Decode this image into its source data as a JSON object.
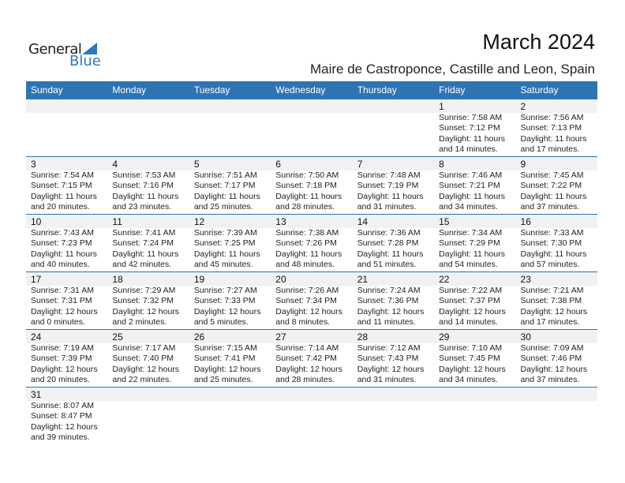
{
  "logo": {
    "general": "General",
    "blue": "Blue"
  },
  "title": "March 2024",
  "subtitle": "Maire de Castroponce, Castille and Leon, Spain",
  "weekdays": [
    "Sunday",
    "Monday",
    "Tuesday",
    "Wednesday",
    "Thursday",
    "Friday",
    "Saturday"
  ],
  "colors": {
    "header": "#2e74b5",
    "date_strip": "#f1f1f1"
  },
  "weeks": [
    [
      null,
      null,
      null,
      null,
      null,
      {
        "day": "1",
        "sunrise": "Sunrise: 7:58 AM",
        "sunset": "Sunset: 7:12 PM",
        "daylight": "Daylight: 11 hours",
        "minutes": "and 14 minutes."
      },
      {
        "day": "2",
        "sunrise": "Sunrise: 7:56 AM",
        "sunset": "Sunset: 7:13 PM",
        "daylight": "Daylight: 11 hours",
        "minutes": "and 17 minutes."
      }
    ],
    [
      {
        "day": "3",
        "sunrise": "Sunrise: 7:54 AM",
        "sunset": "Sunset: 7:15 PM",
        "daylight": "Daylight: 11 hours",
        "minutes": "and 20 minutes."
      },
      {
        "day": "4",
        "sunrise": "Sunrise: 7:53 AM",
        "sunset": "Sunset: 7:16 PM",
        "daylight": "Daylight: 11 hours",
        "minutes": "and 23 minutes."
      },
      {
        "day": "5",
        "sunrise": "Sunrise: 7:51 AM",
        "sunset": "Sunset: 7:17 PM",
        "daylight": "Daylight: 11 hours",
        "minutes": "and 25 minutes."
      },
      {
        "day": "6",
        "sunrise": "Sunrise: 7:50 AM",
        "sunset": "Sunset: 7:18 PM",
        "daylight": "Daylight: 11 hours",
        "minutes": "and 28 minutes."
      },
      {
        "day": "7",
        "sunrise": "Sunrise: 7:48 AM",
        "sunset": "Sunset: 7:19 PM",
        "daylight": "Daylight: 11 hours",
        "minutes": "and 31 minutes."
      },
      {
        "day": "8",
        "sunrise": "Sunrise: 7:46 AM",
        "sunset": "Sunset: 7:21 PM",
        "daylight": "Daylight: 11 hours",
        "minutes": "and 34 minutes."
      },
      {
        "day": "9",
        "sunrise": "Sunrise: 7:45 AM",
        "sunset": "Sunset: 7:22 PM",
        "daylight": "Daylight: 11 hours",
        "minutes": "and 37 minutes."
      }
    ],
    [
      {
        "day": "10",
        "sunrise": "Sunrise: 7:43 AM",
        "sunset": "Sunset: 7:23 PM",
        "daylight": "Daylight: 11 hours",
        "minutes": "and 40 minutes."
      },
      {
        "day": "11",
        "sunrise": "Sunrise: 7:41 AM",
        "sunset": "Sunset: 7:24 PM",
        "daylight": "Daylight: 11 hours",
        "minutes": "and 42 minutes."
      },
      {
        "day": "12",
        "sunrise": "Sunrise: 7:39 AM",
        "sunset": "Sunset: 7:25 PM",
        "daylight": "Daylight: 11 hours",
        "minutes": "and 45 minutes."
      },
      {
        "day": "13",
        "sunrise": "Sunrise: 7:38 AM",
        "sunset": "Sunset: 7:26 PM",
        "daylight": "Daylight: 11 hours",
        "minutes": "and 48 minutes."
      },
      {
        "day": "14",
        "sunrise": "Sunrise: 7:36 AM",
        "sunset": "Sunset: 7:28 PM",
        "daylight": "Daylight: 11 hours",
        "minutes": "and 51 minutes."
      },
      {
        "day": "15",
        "sunrise": "Sunrise: 7:34 AM",
        "sunset": "Sunset: 7:29 PM",
        "daylight": "Daylight: 11 hours",
        "minutes": "and 54 minutes."
      },
      {
        "day": "16",
        "sunrise": "Sunrise: 7:33 AM",
        "sunset": "Sunset: 7:30 PM",
        "daylight": "Daylight: 11 hours",
        "minutes": "and 57 minutes."
      }
    ],
    [
      {
        "day": "17",
        "sunrise": "Sunrise: 7:31 AM",
        "sunset": "Sunset: 7:31 PM",
        "daylight": "Daylight: 12 hours",
        "minutes": "and 0 minutes."
      },
      {
        "day": "18",
        "sunrise": "Sunrise: 7:29 AM",
        "sunset": "Sunset: 7:32 PM",
        "daylight": "Daylight: 12 hours",
        "minutes": "and 2 minutes."
      },
      {
        "day": "19",
        "sunrise": "Sunrise: 7:27 AM",
        "sunset": "Sunset: 7:33 PM",
        "daylight": "Daylight: 12 hours",
        "minutes": "and 5 minutes."
      },
      {
        "day": "20",
        "sunrise": "Sunrise: 7:26 AM",
        "sunset": "Sunset: 7:34 PM",
        "daylight": "Daylight: 12 hours",
        "minutes": "and 8 minutes."
      },
      {
        "day": "21",
        "sunrise": "Sunrise: 7:24 AM",
        "sunset": "Sunset: 7:36 PM",
        "daylight": "Daylight: 12 hours",
        "minutes": "and 11 minutes."
      },
      {
        "day": "22",
        "sunrise": "Sunrise: 7:22 AM",
        "sunset": "Sunset: 7:37 PM",
        "daylight": "Daylight: 12 hours",
        "minutes": "and 14 minutes."
      },
      {
        "day": "23",
        "sunrise": "Sunrise: 7:21 AM",
        "sunset": "Sunset: 7:38 PM",
        "daylight": "Daylight: 12 hours",
        "minutes": "and 17 minutes."
      }
    ],
    [
      {
        "day": "24",
        "sunrise": "Sunrise: 7:19 AM",
        "sunset": "Sunset: 7:39 PM",
        "daylight": "Daylight: 12 hours",
        "minutes": "and 20 minutes."
      },
      {
        "day": "25",
        "sunrise": "Sunrise: 7:17 AM",
        "sunset": "Sunset: 7:40 PM",
        "daylight": "Daylight: 12 hours",
        "minutes": "and 22 minutes."
      },
      {
        "day": "26",
        "sunrise": "Sunrise: 7:15 AM",
        "sunset": "Sunset: 7:41 PM",
        "daylight": "Daylight: 12 hours",
        "minutes": "and 25 minutes."
      },
      {
        "day": "27",
        "sunrise": "Sunrise: 7:14 AM",
        "sunset": "Sunset: 7:42 PM",
        "daylight": "Daylight: 12 hours",
        "minutes": "and 28 minutes."
      },
      {
        "day": "28",
        "sunrise": "Sunrise: 7:12 AM",
        "sunset": "Sunset: 7:43 PM",
        "daylight": "Daylight: 12 hours",
        "minutes": "and 31 minutes."
      },
      {
        "day": "29",
        "sunrise": "Sunrise: 7:10 AM",
        "sunset": "Sunset: 7:45 PM",
        "daylight": "Daylight: 12 hours",
        "minutes": "and 34 minutes."
      },
      {
        "day": "30",
        "sunrise": "Sunrise: 7:09 AM",
        "sunset": "Sunset: 7:46 PM",
        "daylight": "Daylight: 12 hours",
        "minutes": "and 37 minutes."
      }
    ],
    [
      {
        "day": "31",
        "sunrise": "Sunrise: 8:07 AM",
        "sunset": "Sunset: 8:47 PM",
        "daylight": "Daylight: 12 hours",
        "minutes": "and 39 minutes."
      },
      null,
      null,
      null,
      null,
      null,
      null
    ]
  ]
}
